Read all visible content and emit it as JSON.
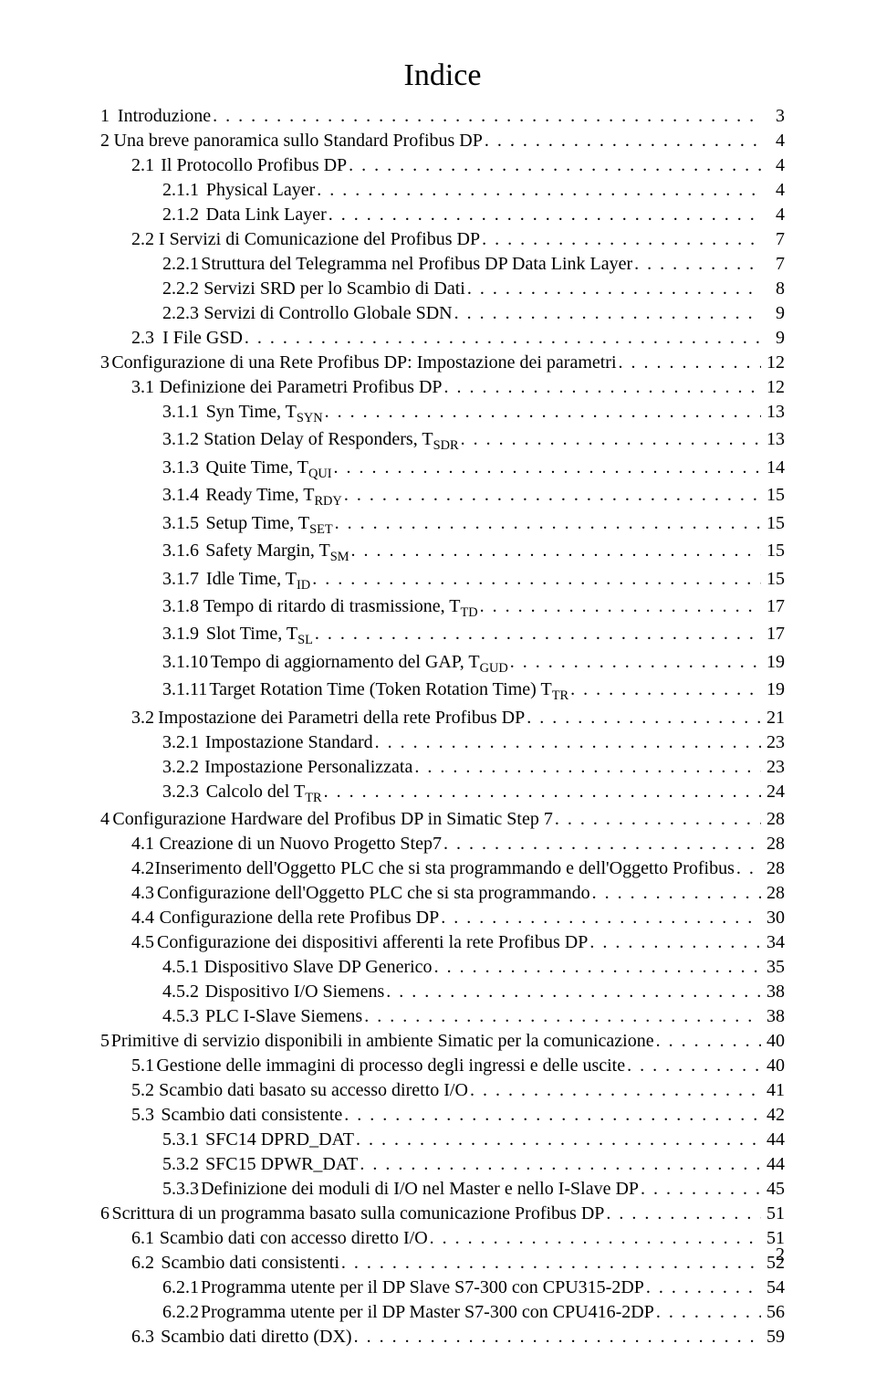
{
  "doc_title": "Indice",
  "page_number": "2",
  "entries": [
    {
      "indent": 1,
      "num": "1",
      "gap": 24,
      "text": "Introduzione",
      "page": "3"
    },
    {
      "indent": 1,
      "num": "2",
      "gap": 24,
      "text": "Una breve panoramica sullo Standard Profibus DP",
      "page": "4"
    },
    {
      "indent": 2,
      "num": "2.1",
      "gap": 26,
      "text": "Il Protocollo Profibus DP",
      "page": "4"
    },
    {
      "indent": 3,
      "num": "2.1.1",
      "gap": 26,
      "text": "Physical Layer",
      "page": "4"
    },
    {
      "indent": 3,
      "num": "2.1.2",
      "gap": 26,
      "text": "Data Link Layer",
      "page": "4"
    },
    {
      "indent": 2,
      "num": "2.2",
      "gap": 26,
      "text": "I Servizi di Comunicazione del Profibus DP",
      "page": "7"
    },
    {
      "indent": 3,
      "num": "2.2.1",
      "gap": 26,
      "text": "Struttura del Telegramma nel Profibus DP Data Link Layer",
      "page": "7"
    },
    {
      "indent": 3,
      "num": "2.2.2",
      "gap": 26,
      "text": "Servizi SRD per lo Scambio di Dati",
      "page": "8"
    },
    {
      "indent": 3,
      "num": "2.2.3",
      "gap": 26,
      "text": "Servizi di Controllo Globale SDN",
      "page": "9"
    },
    {
      "indent": 2,
      "num": "2.3",
      "gap": 26,
      "text": "I File GSD",
      "page": "9"
    },
    {
      "indent": 1,
      "num": "3",
      "gap": 24,
      "text": "Configurazione di una Rete Profibus DP: Impostazione dei parametri",
      "page": "12"
    },
    {
      "indent": 2,
      "num": "3.1",
      "gap": 26,
      "text": "Definizione dei Parametri Profibus DP",
      "page": "12"
    },
    {
      "indent": 3,
      "num": "3.1.1",
      "gap": 26,
      "text": "Syn Time, T",
      "sub": "SYN",
      "page": "13"
    },
    {
      "indent": 3,
      "num": "3.1.2",
      "gap": 26,
      "text": "Station Delay of Responders, T",
      "sub": "SDR",
      "page": "13"
    },
    {
      "indent": 3,
      "num": "3.1.3",
      "gap": 26,
      "text": "Quite Time, T",
      "sub": "QUI",
      "page": "14"
    },
    {
      "indent": 3,
      "num": "3.1.4",
      "gap": 26,
      "text": "Ready Time, T",
      "sub": "RDY",
      "page": "15"
    },
    {
      "indent": 3,
      "num": "3.1.5",
      "gap": 26,
      "text": "Setup Time, T",
      "sub": "SET",
      "page": "15"
    },
    {
      "indent": 3,
      "num": "3.1.6",
      "gap": 26,
      "text": "Safety Margin, T",
      "sub": "SM",
      "page": "15"
    },
    {
      "indent": 3,
      "num": "3.1.7",
      "gap": 26,
      "text": "Idle Time, T",
      "sub": "ID",
      "page": "15"
    },
    {
      "indent": 3,
      "num": "3.1.8",
      "gap": 26,
      "text": "Tempo di ritardo di trasmissione, T",
      "sub": "TD",
      "page": "17"
    },
    {
      "indent": 3,
      "num": "3.1.9",
      "gap": 26,
      "text": "Slot Time, T",
      "sub": "SL",
      "page": "17"
    },
    {
      "indent": 3,
      "num": "3.1.10",
      "gap": 16,
      "text": "Tempo di aggiornamento del GAP, T",
      "sub": "GUD",
      "page": "19"
    },
    {
      "indent": 3,
      "num": "3.1.11",
      "gap": 16,
      "text": "Target Rotation Time (Token Rotation Time) T",
      "sub": "TR",
      "page": "19"
    },
    {
      "indent": 2,
      "num": "3.2",
      "gap": 26,
      "text": "Impostazione dei Parametri della rete Profibus DP",
      "page": "21"
    },
    {
      "indent": 3,
      "num": "3.2.1",
      "gap": 26,
      "text": "Impostazione Standard",
      "page": "23"
    },
    {
      "indent": 3,
      "num": "3.2.2",
      "gap": 26,
      "text": "Impostazione Personalizzata",
      "page": "23"
    },
    {
      "indent": 3,
      "num": "3.2.3",
      "gap": 26,
      "text": "Calcolo del T",
      "sub": "TR",
      "page": "24"
    },
    {
      "indent": 1,
      "num": "4",
      "gap": 24,
      "text": "Configurazione Hardware del Profibus DP in Simatic Step 7",
      "page": "28"
    },
    {
      "indent": 2,
      "num": "4.1",
      "gap": 26,
      "text": "Creazione di un Nuovo Progetto Step7",
      "page": "28"
    },
    {
      "indent": 2,
      "num": "4.2",
      "gap": 26,
      "text": "Inserimento dell'Oggetto PLC che si sta programmando e dell'Oggetto Profibus",
      "page": "28"
    },
    {
      "indent": 2,
      "num": "4.3",
      "gap": 26,
      "text": "Configurazione dell'Oggetto PLC che si sta programmando",
      "page": "28"
    },
    {
      "indent": 2,
      "num": "4.4",
      "gap": 26,
      "text": "Configurazione della rete Profibus DP",
      "page": "30"
    },
    {
      "indent": 2,
      "num": "4.5",
      "gap": 26,
      "text": "Configurazione dei dispositivi afferenti la rete Profibus DP",
      "page": "34"
    },
    {
      "indent": 3,
      "num": "4.5.1",
      "gap": 26,
      "text": "Dispositivo Slave DP Generico",
      "page": "35"
    },
    {
      "indent": 3,
      "num": "4.5.2",
      "gap": 26,
      "text": "Dispositivo I/O Siemens",
      "page": "38"
    },
    {
      "indent": 3,
      "num": "4.5.3",
      "gap": 26,
      "text": "PLC I-Slave Siemens",
      "page": "38"
    },
    {
      "indent": 1,
      "num": "5",
      "gap": 24,
      "text": "Primitive di servizio disponibili in ambiente Simatic per la comunicazione",
      "page": "40"
    },
    {
      "indent": 2,
      "num": "5.1",
      "gap": 26,
      "text": "Gestione delle immagini di processo degli ingressi e delle uscite",
      "page": "40"
    },
    {
      "indent": 2,
      "num": "5.2",
      "gap": 26,
      "text": "Scambio dati basato su accesso diretto I/O",
      "page": "41"
    },
    {
      "indent": 2,
      "num": "5.3",
      "gap": 26,
      "text": "Scambio dati consistente",
      "page": "42"
    },
    {
      "indent": 3,
      "num": "5.3.1",
      "gap": 26,
      "text": "SFC14 DPRD_DAT",
      "page": "44"
    },
    {
      "indent": 3,
      "num": "5.3.2",
      "gap": 26,
      "text": "SFC15 DPWR_DAT",
      "page": "44"
    },
    {
      "indent": 3,
      "num": "5.3.3",
      "gap": 26,
      "text": "Definizione dei moduli di I/O nel Master e nello I-Slave DP",
      "page": "45"
    },
    {
      "indent": 1,
      "num": "6",
      "gap": 24,
      "text": "Scrittura di un programma basato sulla comunicazione Profibus DP",
      "page": "51"
    },
    {
      "indent": 2,
      "num": "6.1",
      "gap": 26,
      "text": "Scambio dati con accesso diretto I/O",
      "page": "51"
    },
    {
      "indent": 2,
      "num": "6.2",
      "gap": 26,
      "text": "Scambio dati consistenti",
      "page": "52"
    },
    {
      "indent": 3,
      "num": "6.2.1",
      "gap": 26,
      "text": "Programma utente per il DP Slave S7-300 con CPU315-2DP",
      "page": "54"
    },
    {
      "indent": 3,
      "num": "6.2.2",
      "gap": 26,
      "text": "Programma utente per il DP Master S7-300 con CPU416-2DP",
      "page": "56"
    },
    {
      "indent": 2,
      "num": "6.3",
      "gap": 26,
      "text": "Scambio dati diretto (DX)",
      "page": "59"
    }
  ]
}
